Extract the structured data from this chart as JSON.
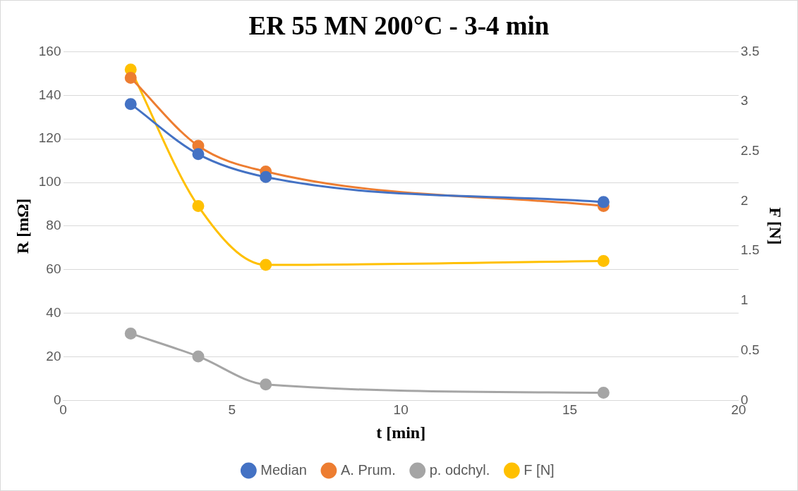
{
  "chart_data": {
    "type": "line",
    "title": "ER 55 MN 200°C - 3-4 min",
    "xlabel": "t [min]",
    "ylabel": "R [mΩ]",
    "y2label": "F [N]",
    "x": [
      2,
      4,
      6,
      16
    ],
    "series": [
      {
        "name": "Median",
        "color": "#4472c4",
        "values": [
          136,
          113,
          102.5,
          91
        ]
      },
      {
        "name": "A. Prum.",
        "color": "#ed7d31",
        "values": [
          148,
          116.8,
          105,
          89.2
        ]
      },
      {
        "name": "p. odchyl.",
        "color": "#a5a5a5",
        "values": [
          30.7,
          20.2,
          7.3,
          3.5
        ]
      },
      {
        "name": "F [N]",
        "color": "#ffc000",
        "values": [
          3.32,
          1.95,
          1.36,
          1.4
        ],
        "axis": "y2"
      }
    ],
    "xlim": [
      0,
      20
    ],
    "xticks": [
      0,
      5,
      10,
      15,
      20
    ],
    "ylim": [
      0,
      160
    ],
    "yticks": [
      0,
      20,
      40,
      60,
      80,
      100,
      120,
      140,
      160
    ],
    "y2lim": [
      0,
      3.5
    ],
    "y2ticks": [
      0,
      0.5,
      1,
      1.5,
      2,
      2.5,
      3,
      3.5
    ],
    "grid": "y",
    "legend": "bottom",
    "marker": "circle",
    "line_style": "solid"
  }
}
